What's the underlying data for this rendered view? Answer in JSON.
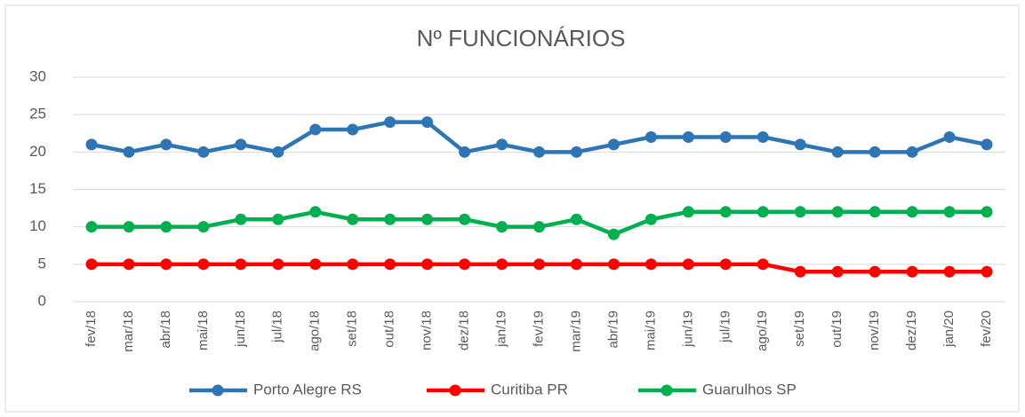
{
  "chart_data": {
    "type": "line",
    "title": "Nº FUNCIONÁRIOS",
    "categories": [
      "fev/18",
      "mar/18",
      "abr/18",
      "mai/18",
      "jun/18",
      "jul/18",
      "ago/18",
      "set/18",
      "out/18",
      "nov/18",
      "dez/18",
      "jan/19",
      "fev/19",
      "mar/19",
      "abr/19",
      "mai/19",
      "jun/19",
      "jul/19",
      "ago/19",
      "set/19",
      "out/19",
      "nov/19",
      "dez/19",
      "jan/20",
      "fev/20"
    ],
    "series": [
      {
        "name": "Porto Alegre RS",
        "color": "#2e75b6",
        "values": [
          21,
          20,
          21,
          20,
          21,
          20,
          23,
          23,
          24,
          24,
          20,
          21,
          20,
          20,
          21,
          22,
          22,
          22,
          22,
          21,
          20,
          20,
          20,
          22,
          21
        ]
      },
      {
        "name": "Curitiba PR",
        "color": "#ff0000",
        "values": [
          5,
          5,
          5,
          5,
          5,
          5,
          5,
          5,
          5,
          5,
          5,
          5,
          5,
          5,
          5,
          5,
          5,
          5,
          5,
          4,
          4,
          4,
          4,
          4,
          4
        ]
      },
      {
        "name": "Guarulhos SP",
        "color": "#00b050",
        "values": [
          10,
          10,
          10,
          10,
          11,
          11,
          12,
          11,
          11,
          11,
          11,
          10,
          10,
          11,
          9,
          11,
          12,
          12,
          12,
          12,
          12,
          12,
          12,
          12,
          12
        ]
      }
    ],
    "ylim": [
      0,
      30
    ],
    "yticks": [
      0,
      5,
      10,
      15,
      20,
      25,
      30
    ],
    "grid": true,
    "legend": "bottom"
  }
}
